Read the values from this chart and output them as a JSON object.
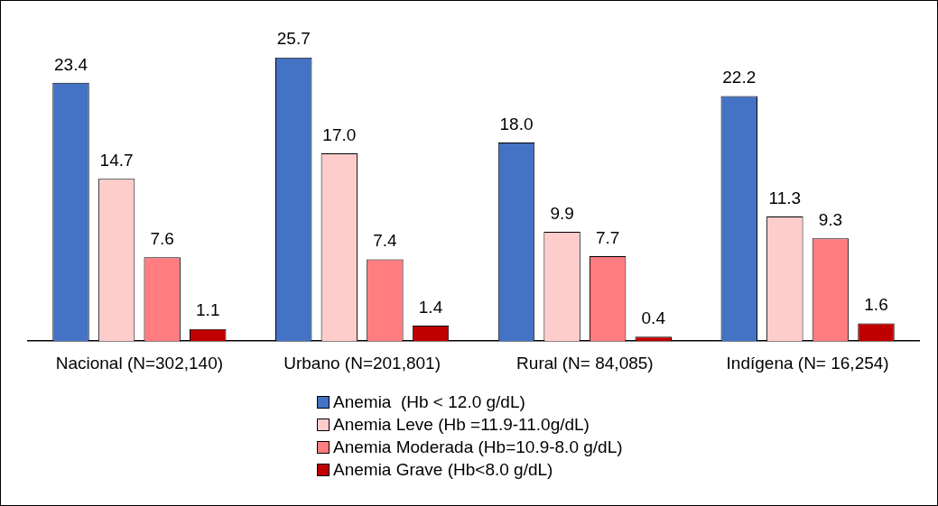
{
  "chart_data": {
    "type": "bar",
    "categories": [
      "Nacional (N=302,140)",
      "Urbano (N=201,801)",
      "Rural (N= 84,085)",
      "Indígena (N= 16,254)"
    ],
    "series": [
      {
        "name": "Anemia  (Hb < 12.0 g/dL)",
        "color": "#4472c4",
        "values": [
          23.4,
          25.7,
          18.0,
          22.2
        ],
        "value_labels": [
          "23.4",
          "25.7",
          "18.0",
          "22.2"
        ]
      },
      {
        "name": "Anemia Leve (Hb =11.9-11.0g/dL)",
        "color": "#ffcccc",
        "values": [
          14.7,
          17.0,
          9.9,
          11.3
        ],
        "value_labels": [
          "14.7",
          "17.0",
          "9.9",
          "11.3"
        ]
      },
      {
        "name": "Anemia Moderada (Hb=10.9-8.0 g/dL)",
        "color": "#ff7c80",
        "values": [
          7.6,
          7.4,
          7.7,
          9.3
        ],
        "value_labels": [
          "7.6",
          "7.4",
          "7.7",
          "9.3"
        ]
      },
      {
        "name": "Anemia Grave (Hb<8.0 g/dL)",
        "color": "#c00000",
        "values": [
          1.1,
          1.4,
          0.4,
          1.6
        ],
        "value_labels": [
          "1.1",
          "1.4",
          "0.4",
          "1.6"
        ]
      }
    ],
    "legend": "bottom",
    "grid": false
  }
}
